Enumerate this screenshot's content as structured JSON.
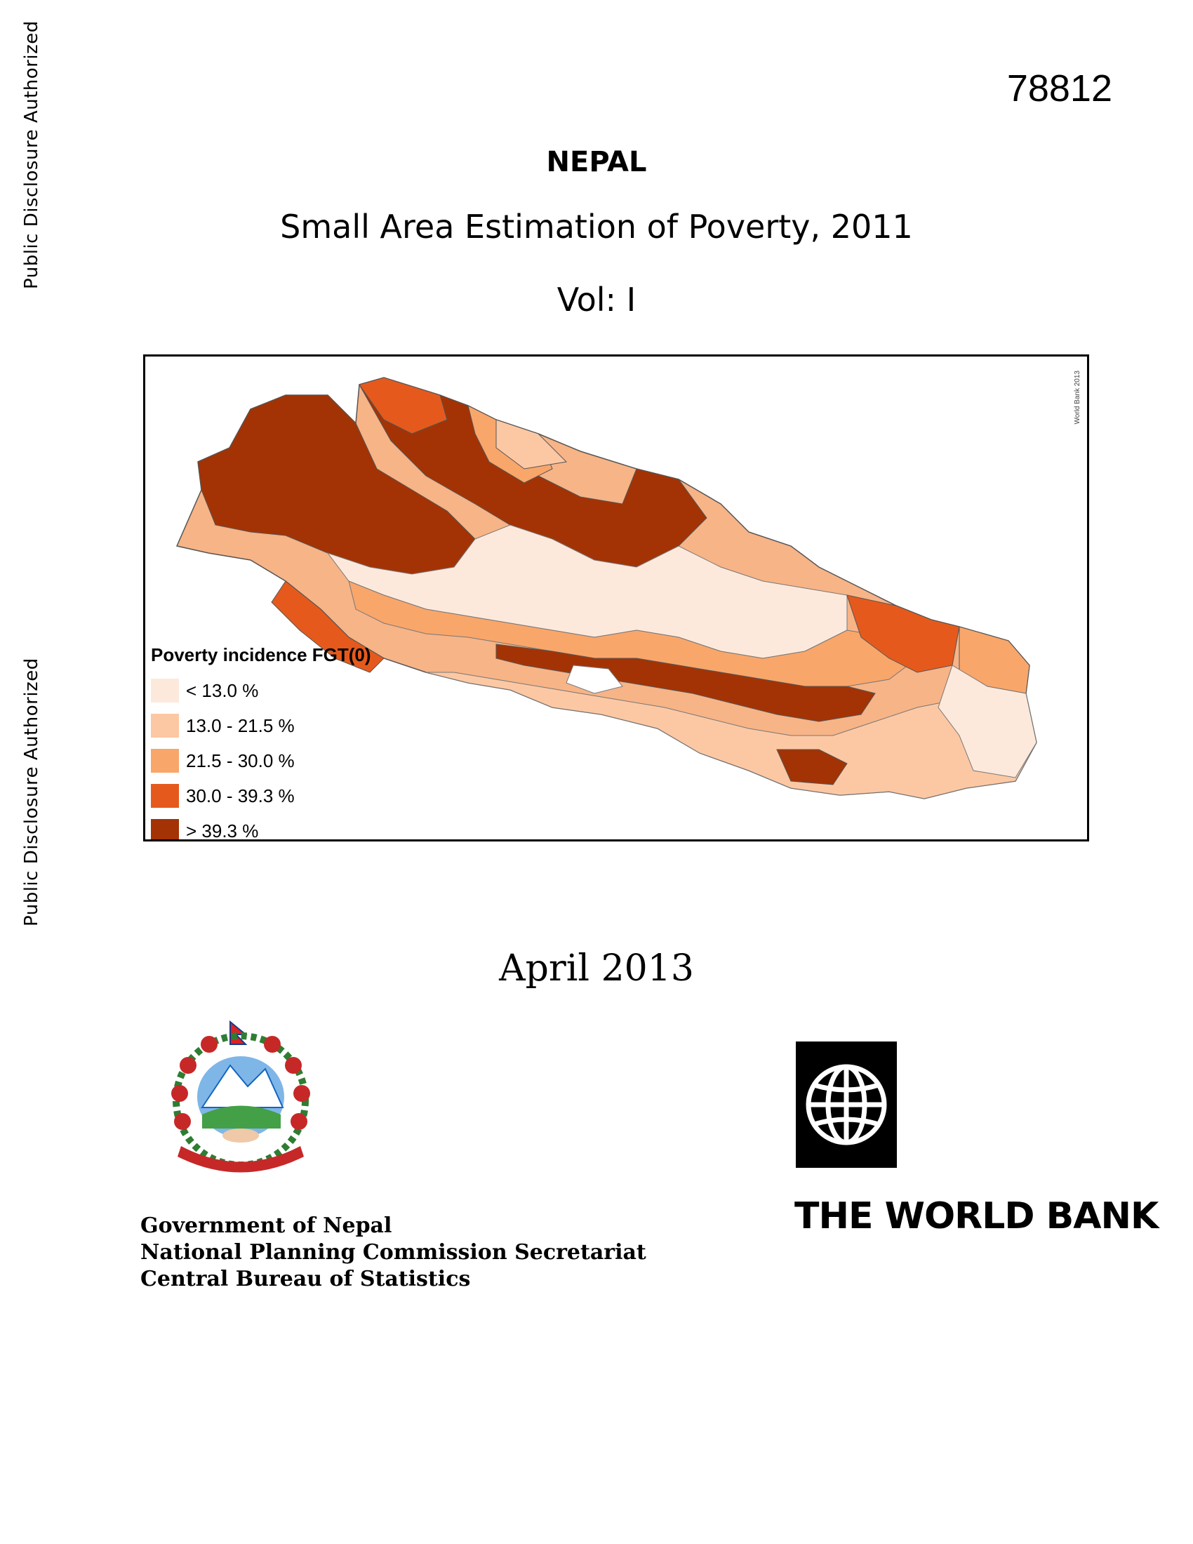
{
  "side_notes": {
    "top": "Public Disclosure Authorized",
    "bottom": "Public Disclosure Authorized"
  },
  "doc_number": "78812",
  "title": {
    "country": "NEPAL",
    "subtitle": "Small Area Estimation of Poverty, 2011",
    "volume": "Vol: I"
  },
  "map": {
    "credit": "World Bank 2013",
    "legend": {
      "title": "Poverty incidence FGT(0)",
      "items": [
        {
          "label": "< 13.0 %",
          "color": "#fde9dc"
        },
        {
          "label": "13.0 - 21.5 %",
          "color": "#fcc8a3"
        },
        {
          "label": "21.5 - 30.0 %",
          "color": "#f9a66b"
        },
        {
          "label": "30.0 - 39.3 %",
          "color": "#e55a1c"
        },
        {
          "label": "> 39.3 %",
          "color": "#a33305"
        }
      ]
    }
  },
  "date": "April 2013",
  "agencies": [
    "Government of Nepal",
    "National Planning Commission Secretariat",
    "Central Bureau of Statistics"
  ],
  "world_bank": {
    "name": "THE WORLD BANK"
  },
  "icons": {
    "emblem": "nepal-emblem-icon",
    "world_bank_logo": "world-bank-globe-icon"
  }
}
